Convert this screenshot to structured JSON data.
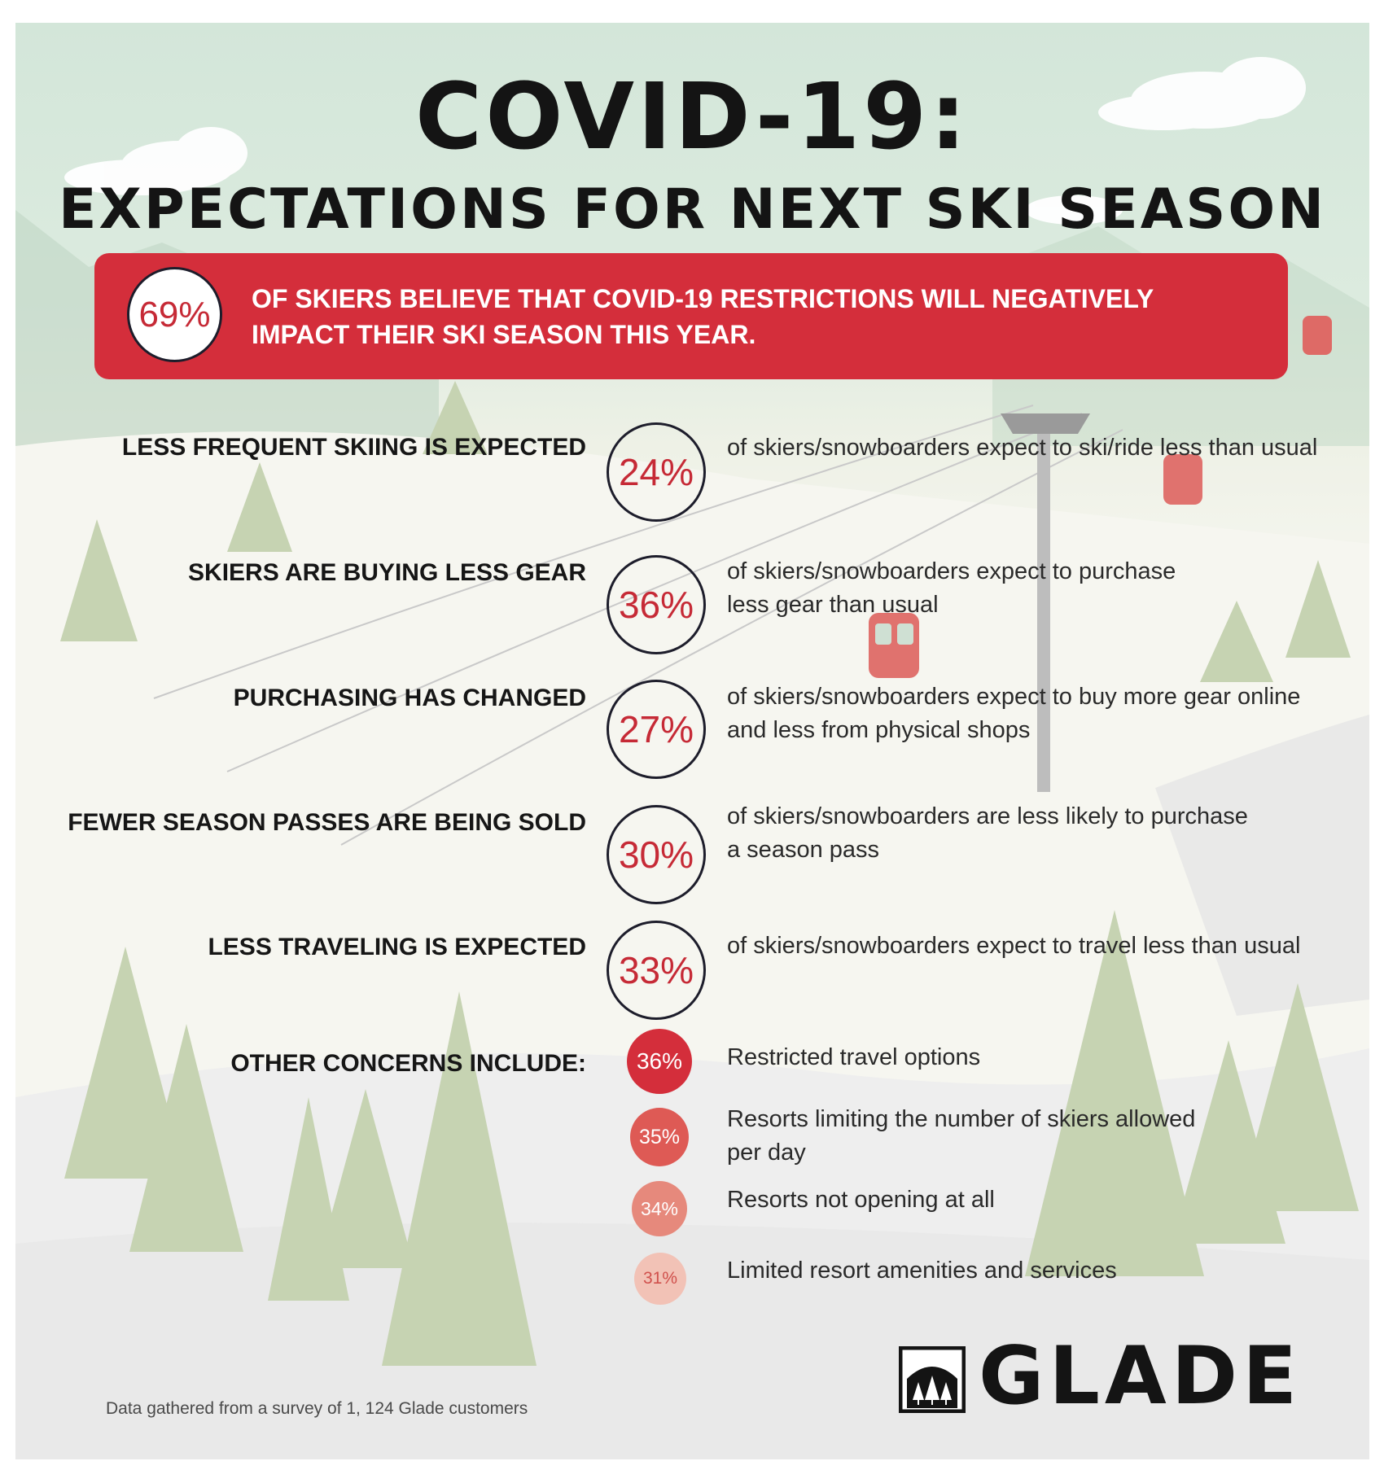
{
  "title": "COVID-19:",
  "subtitle": "EXPECTATIONS FOR NEXT SKI SEASON",
  "headline": {
    "percent": "69%",
    "text": "OF SKIERS BELIEVE  THAT COVID-19 RESTRICTIONS WILL NEGATIVELY IMPACT THEIR SKI SEASON THIS YEAR."
  },
  "stats": [
    {
      "label": "LESS FREQUENT SKIING IS EXPECTED",
      "percent": "24%",
      "description": "of skiers/snowboarders expect to ski/ride less than usual"
    },
    {
      "label": "SKIERS ARE BUYING LESS GEAR",
      "percent": "36%",
      "description": "of skiers/snowboarders expect to purchase less gear than usual"
    },
    {
      "label": "PURCHASING HAS CHANGED",
      "percent": "27%",
      "description": "of skiers/snowboarders expect to buy more gear online and less from physical shops"
    },
    {
      "label": "FEWER SEASON PASSES ARE BEING SOLD",
      "percent": "30%",
      "description": "of skiers/snowboarders are less likely to purchase a season pass"
    },
    {
      "label": "LESS TRAVELING IS EXPECTED",
      "percent": "33%",
      "description": "of skiers/snowboarders expect to travel less than usual"
    }
  ],
  "other_concerns": {
    "label": "OTHER CONCERNS INCLUDE:",
    "items": [
      {
        "percent": "36%",
        "text": "Restricted travel options",
        "color": "#d42e3b"
      },
      {
        "percent": "35%",
        "text": "Resorts limiting the number of skiers allowed per day",
        "color": "#de5a55"
      },
      {
        "percent": "34%",
        "text": "Resorts not opening at all",
        "color": "#e6897c"
      },
      {
        "percent": "31%",
        "text": "Limited resort amenities and services",
        "color": "#f2c2b6"
      }
    ]
  },
  "footnote": "Data gathered from a survey of 1, 124 Glade customers",
  "brand": {
    "name": "GLADE",
    "icon": "glade-tree-logo-icon"
  },
  "colors": {
    "accent": "#d42e3b",
    "text": "#141414",
    "tree": "#c6d3b2"
  }
}
